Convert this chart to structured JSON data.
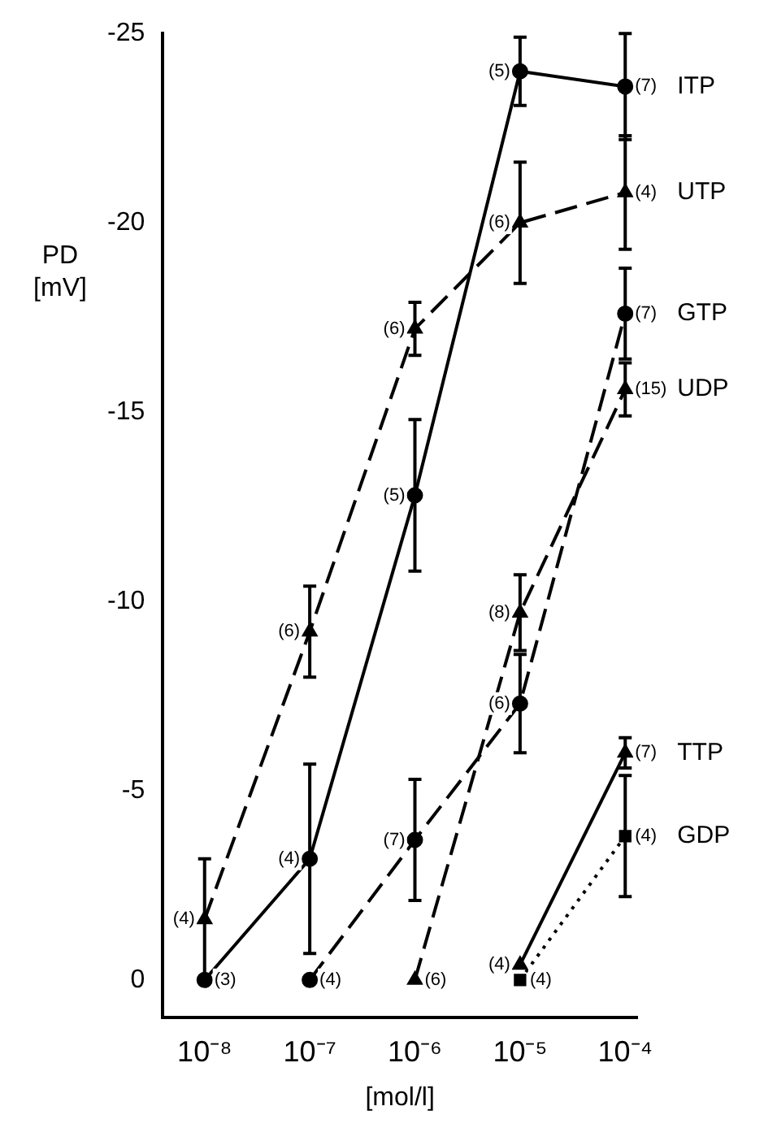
{
  "chart_data": {
    "type": "line",
    "ylabel": "PD [mV]",
    "xlabel": "[mol/l]",
    "log": "x",
    "grid": false,
    "legend": false,
    "xlim": [
      4e-09,
      0.00013
    ],
    "xticks": [
      {
        "value": 1e-08,
        "label": "10⁻⁸"
      },
      {
        "value": 1e-07,
        "label": "10⁻⁷"
      },
      {
        "value": 1e-06,
        "label": "10⁻⁶"
      },
      {
        "value": 1e-05,
        "label": "10⁻⁵"
      },
      {
        "value": 0.0001,
        "label": "10⁻⁴"
      }
    ],
    "ylim": [
      1,
      -25
    ],
    "yticks": [
      0,
      -5,
      -10,
      -15,
      -20,
      -25
    ],
    "series": [
      {
        "name": "ITP",
        "color": "#000000",
        "marker": "circle",
        "line_style": "solid",
        "x": [
          1e-08,
          1e-07,
          1e-06,
          1e-05,
          0.0001
        ],
        "values": [
          0,
          -3.2,
          -12.8,
          -24.0,
          -23.6
        ],
        "errors": [
          null,
          2.5,
          2.0,
          0.9,
          1.4
        ]
      },
      {
        "name": "UTP",
        "color": "#000000",
        "marker": "triangle",
        "line_style": "dashed",
        "x": [
          1e-08,
          1e-07,
          1e-06,
          1e-05,
          0.0001
        ],
        "values": [
          -1.6,
          -9.2,
          -17.2,
          -20.0,
          -20.8
        ],
        "errors": [
          1.6,
          1.2,
          0.7,
          1.6,
          1.5
        ]
      },
      {
        "name": "GTP",
        "color": "#000000",
        "marker": "circle",
        "line_style": "dashed",
        "x": [
          1e-07,
          1e-06,
          1e-05,
          0.0001
        ],
        "values": [
          0,
          -3.7,
          -7.3,
          -17.6
        ],
        "errors": [
          null,
          1.6,
          1.3,
          1.2
        ]
      },
      {
        "name": "UDP",
        "color": "#000000",
        "marker": "triangle",
        "line_style": "dashed",
        "x": [
          1e-06,
          1e-05,
          0.0001
        ],
        "values": [
          0,
          -9.7,
          -15.6
        ],
        "errors": [
          null,
          1.0,
          0.7
        ]
      },
      {
        "name": "TTP",
        "color": "#000000",
        "marker": "triangle",
        "line_style": "solid",
        "x": [
          1e-05,
          0.0001
        ],
        "values": [
          -0.4,
          -6.0
        ],
        "errors": [
          null,
          0.4
        ]
      },
      {
        "name": "GDP",
        "color": "#000000",
        "marker": "square",
        "line_style": "dotted",
        "x": [
          1e-05,
          0.0001
        ],
        "values": [
          0,
          -3.8
        ],
        "errors": [
          null,
          1.6
        ]
      }
    ],
    "annotations": [
      {
        "text": "(3)",
        "x": 1e-08,
        "y": 0
      },
      {
        "text": "(4)",
        "x": 1e-07,
        "y": -3.2
      },
      {
        "text": "(5)",
        "x": 1e-06,
        "y": -12.8
      },
      {
        "text": "(5)",
        "x": 1e-05,
        "y": -24.0
      },
      {
        "text": "(7)",
        "x": 0.0001,
        "y": -23.6
      },
      {
        "text": "(4)",
        "x": 1e-08,
        "y": -1.6
      },
      {
        "text": "(6)",
        "x": 1e-07,
        "y": -9.2
      },
      {
        "text": "(6)",
        "x": 1e-06,
        "y": -17.2
      },
      {
        "text": "(6)",
        "x": 1e-05,
        "y": -20.0
      },
      {
        "text": "(4)",
        "x": 0.0001,
        "y": -20.8
      },
      {
        "text": "(4)",
        "x": 1e-07,
        "y": 0
      },
      {
        "text": "(7)",
        "x": 1e-06,
        "y": -3.7
      },
      {
        "text": "(6)",
        "x": 1e-05,
        "y": -7.3
      },
      {
        "text": "(7)",
        "x": 0.0001,
        "y": -17.6
      },
      {
        "text": "(6)",
        "x": 1e-06,
        "y": 0
      },
      {
        "text": "(8)",
        "x": 1e-05,
        "y": -9.7
      },
      {
        "text": "(15)",
        "x": 0.0001,
        "y": -15.6
      },
      {
        "text": "(4)",
        "x": 1e-05,
        "y": -0.4
      },
      {
        "text": "(7)",
        "x": 0.0001,
        "y": -6.0
      },
      {
        "text": "(4)",
        "x": 1e-05,
        "y": 0
      },
      {
        "text": "(4)",
        "x": 0.0001,
        "y": -3.8
      }
    ]
  }
}
